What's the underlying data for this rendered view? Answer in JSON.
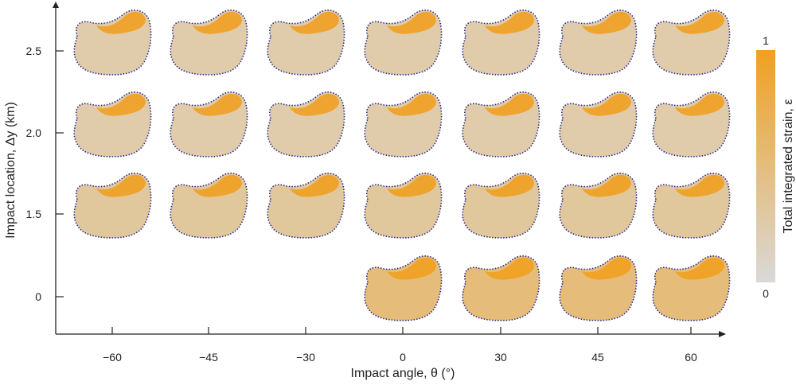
{
  "chart_data": {
    "type": "heatmap",
    "title": "",
    "xlabel": "Impact angle, θ (°)",
    "ylabel": "Impact location, Δy (km)",
    "x": [
      "−60",
      "−45",
      "−30",
      "0",
      "30",
      "45",
      "60"
    ],
    "y": [
      "2.5",
      "2.0",
      "1.5",
      "0"
    ],
    "cells": [
      {
        "dy": "2.5",
        "theta": "−60"
      },
      {
        "dy": "2.5",
        "theta": "−45"
      },
      {
        "dy": "2.5",
        "theta": "−30"
      },
      {
        "dy": "2.5",
        "theta": "0"
      },
      {
        "dy": "2.5",
        "theta": "30"
      },
      {
        "dy": "2.5",
        "theta": "45"
      },
      {
        "dy": "2.5",
        "theta": "60"
      },
      {
        "dy": "2.0",
        "theta": "−60"
      },
      {
        "dy": "2.0",
        "theta": "−45"
      },
      {
        "dy": "2.0",
        "theta": "−30"
      },
      {
        "dy": "2.0",
        "theta": "0"
      },
      {
        "dy": "2.0",
        "theta": "30"
      },
      {
        "dy": "2.0",
        "theta": "45"
      },
      {
        "dy": "2.0",
        "theta": "60"
      },
      {
        "dy": "1.5",
        "theta": "−60"
      },
      {
        "dy": "1.5",
        "theta": "−45"
      },
      {
        "dy": "1.5",
        "theta": "−30"
      },
      {
        "dy": "1.5",
        "theta": "0"
      },
      {
        "dy": "1.5",
        "theta": "30"
      },
      {
        "dy": "1.5",
        "theta": "45"
      },
      {
        "dy": "1.5",
        "theta": "60"
      },
      {
        "dy": "0",
        "theta": "0"
      },
      {
        "dy": "0",
        "theta": "30"
      },
      {
        "dy": "0",
        "theta": "45"
      },
      {
        "dy": "0",
        "theta": "60"
      }
    ],
    "colorbar": {
      "label": "Total integrated strain, ε",
      "max_label": "1",
      "min_label": "0",
      "color_low": "#d9d9d9",
      "color_high": "#f0a020"
    },
    "outline_color": "#2b2b8c",
    "grid": false
  }
}
